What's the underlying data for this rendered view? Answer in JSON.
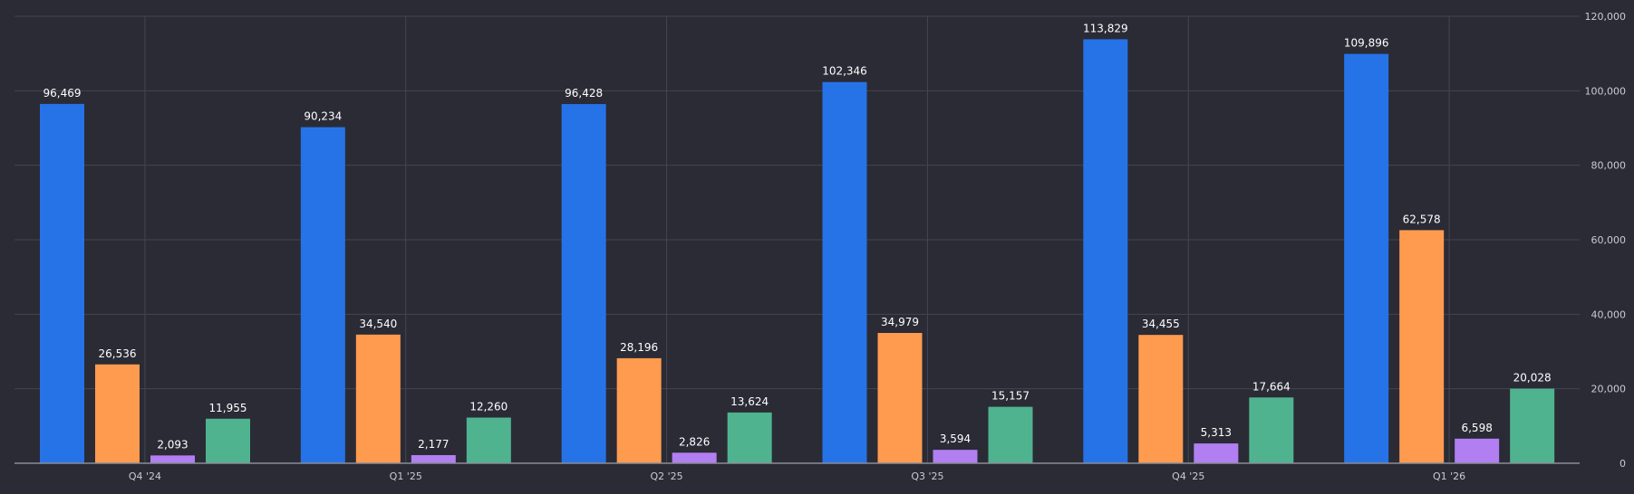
{
  "colors": {
    "background": "#2a2b35",
    "grid": "#44464f",
    "axis": "#8a8c96",
    "text": "#ffffff",
    "tick_text": "#c9cbd4"
  },
  "chart_data": {
    "type": "bar",
    "categories": [
      "Q4 '24",
      "Q1 '25",
      "Q2 '25",
      "Q3 '25",
      "Q4 '25",
      "Q1 '26"
    ],
    "series": [
      {
        "color": "#2673e8",
        "values": [
          96469,
          90234,
          96428,
          102346,
          113829,
          109896
        ]
      },
      {
        "color": "#ff9b4f",
        "values": [
          26536,
          34540,
          28196,
          34979,
          34455,
          62578
        ]
      },
      {
        "color": "#b27ff2",
        "values": [
          2093,
          2177,
          2826,
          3594,
          5313,
          6598
        ]
      },
      {
        "color": "#50b38f",
        "values": [
          11955,
          12260,
          13624,
          15157,
          17664,
          20028
        ]
      }
    ],
    "data_labels": [
      [
        "96,469",
        "26,536",
        "2,093",
        "11,955"
      ],
      [
        "90,234",
        "34,540",
        "2,177",
        "12,260"
      ],
      [
        "96,428",
        "28,196",
        "2,826",
        "13,624"
      ],
      [
        "102,346",
        "34,979",
        "3,594",
        "15,157"
      ],
      [
        "113,829",
        "34,455",
        "5,313",
        "17,664"
      ],
      [
        "109,896",
        "62,578",
        "6,598",
        "20,028"
      ]
    ],
    "y_ticks": [
      0,
      20000,
      40000,
      60000,
      80000,
      100000,
      120000
    ],
    "y_tick_labels": [
      "0",
      "20,000",
      "40,000",
      "60,000",
      "80,000",
      "100,000",
      "120,000"
    ],
    "ylim": [
      0,
      120000
    ],
    "y_axis_position": "right",
    "grid": true,
    "legend": "none"
  }
}
